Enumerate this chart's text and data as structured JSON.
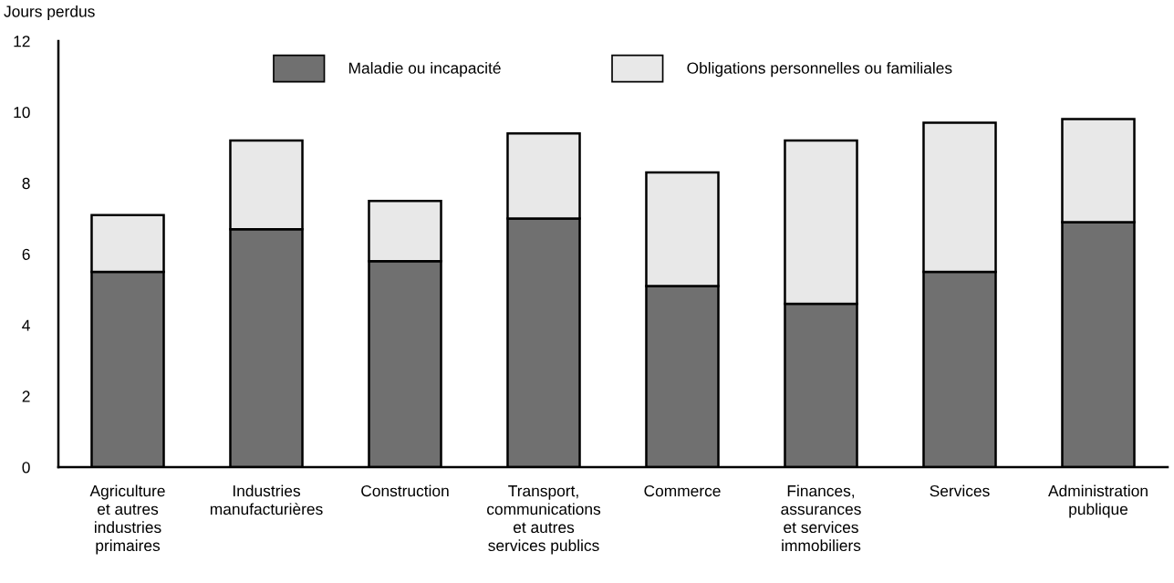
{
  "chart_data": {
    "type": "bar",
    "stacked": true,
    "ylabel": "Jours perdus",
    "categories": [
      "Agriculture\net autres\nindustries\nprimaires",
      "Industries\nmanufacturières",
      "Construction",
      "Transport,\ncommunications\net autres\nservices publics",
      "Commerce",
      "Finances,\nassurances\net services\nimmobiliers",
      "Services",
      "Administration\npublique"
    ],
    "series": [
      {
        "name": "Maladie ou incapacité",
        "color": "#707070",
        "values": [
          5.5,
          6.7,
          5.8,
          7.0,
          5.1,
          4.6,
          5.5,
          6.9
        ]
      },
      {
        "name": "Obligations personnelles ou familiales",
        "color": "#e8e8e8",
        "values": [
          1.6,
          2.5,
          1.7,
          2.4,
          3.2,
          4.6,
          4.2,
          2.9
        ]
      }
    ],
    "ylim": [
      0,
      12
    ],
    "yticks": [
      0,
      2,
      4,
      6,
      8,
      10,
      12
    ],
    "grid": false,
    "legend": "top"
  }
}
